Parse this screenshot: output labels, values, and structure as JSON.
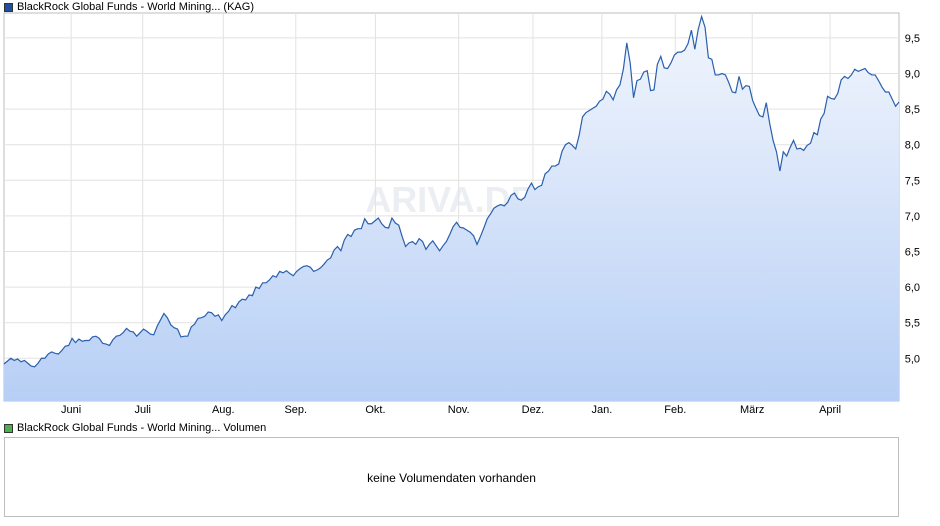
{
  "legend": {
    "price_label": "BlackRock Global Funds - World Mining... (KAG)",
    "price_color": "#1f4fa0",
    "volume_label": "BlackRock Global Funds - World Mining... Volumen",
    "volume_color": "#4caf50"
  },
  "volume": {
    "message": "keine Volumendaten vorhanden"
  },
  "watermark": "ARIVA.DE",
  "chart_data": {
    "type": "area",
    "x_labels": [
      "Juni",
      "Juli",
      "Aug.",
      "Sep.",
      "Okt.",
      "Nov.",
      "Dez.",
      "Jan.",
      "Feb.",
      "März",
      "April"
    ],
    "y_ticks": [
      "5,0",
      "5,5",
      "6,0",
      "6,5",
      "7,0",
      "7,5",
      "8,0",
      "8,5",
      "9,0",
      "9,5"
    ],
    "y_tick_values": [
      5.0,
      5.5,
      6.0,
      6.5,
      7.0,
      7.5,
      8.0,
      8.5,
      9.0,
      9.5
    ],
    "ylim": [
      4.4,
      9.85
    ],
    "line_color": "#2a5fae",
    "fill_top_color": "#f2f6fd",
    "fill_bottom_color": "#b7cff5",
    "grid": true,
    "axis_position": "right",
    "series": [
      {
        "values": [
          4.92,
          4.96,
          5.0,
          4.97,
          4.99,
          4.95,
          4.97,
          4.93,
          4.89,
          4.88,
          4.93,
          5.0,
          5.0,
          5.06,
          5.09,
          5.07,
          5.06,
          5.11,
          5.17,
          5.18,
          5.28,
          5.22,
          5.27,
          5.24,
          5.25,
          5.25,
          5.3,
          5.31,
          5.28,
          5.21,
          5.2,
          5.18,
          5.26,
          5.31,
          5.32,
          5.36,
          5.42,
          5.38,
          5.37,
          5.31,
          5.36,
          5.41,
          5.38,
          5.34,
          5.33,
          5.45,
          5.54,
          5.63,
          5.57,
          5.47,
          5.43,
          5.41,
          5.3,
          5.31,
          5.31,
          5.44,
          5.48,
          5.56,
          5.57,
          5.59,
          5.65,
          5.64,
          5.59,
          5.61,
          5.53,
          5.61,
          5.66,
          5.74,
          5.71,
          5.79,
          5.83,
          5.82,
          5.89,
          5.88,
          6.0,
          5.98,
          6.06,
          6.06,
          6.1,
          6.16,
          6.14,
          6.22,
          6.2,
          6.23,
          6.19,
          6.16,
          6.22,
          6.26,
          6.29,
          6.3,
          6.28,
          6.22,
          6.24,
          6.27,
          6.32,
          6.38,
          6.41,
          6.52,
          6.57,
          6.51,
          6.66,
          6.74,
          6.71,
          6.8,
          6.82,
          6.82,
          6.96,
          6.89,
          6.89,
          6.93,
          6.97,
          6.89,
          6.84,
          6.83,
          6.97,
          6.9,
          6.87,
          6.71,
          6.57,
          6.62,
          6.64,
          6.6,
          6.68,
          6.64,
          6.53,
          6.6,
          6.65,
          6.58,
          6.51,
          6.58,
          6.64,
          6.74,
          6.85,
          6.91,
          6.84,
          6.83,
          6.8,
          6.77,
          6.72,
          6.6,
          6.71,
          6.83,
          6.96,
          7.03,
          7.11,
          7.14,
          7.16,
          7.14,
          7.19,
          7.29,
          7.32,
          7.24,
          7.22,
          7.26,
          7.38,
          7.46,
          7.37,
          7.41,
          7.43,
          7.59,
          7.63,
          7.7,
          7.7,
          7.73,
          7.91,
          8.0,
          8.03,
          7.99,
          7.94,
          8.13,
          8.39,
          8.45,
          8.48,
          8.51,
          8.54,
          8.61,
          8.64,
          8.75,
          8.71,
          8.63,
          8.77,
          8.84,
          9.06,
          9.43,
          9.15,
          8.66,
          8.9,
          8.92,
          9.02,
          9.04,
          8.76,
          8.77,
          9.13,
          9.24,
          9.08,
          9.07,
          9.15,
          9.26,
          9.3,
          9.3,
          9.33,
          9.42,
          9.61,
          9.34,
          9.62,
          9.8,
          9.65,
          9.22,
          9.2,
          8.98,
          8.98,
          9.0,
          8.98,
          8.87,
          8.74,
          8.73,
          8.96,
          8.78,
          8.83,
          8.82,
          8.62,
          8.51,
          8.41,
          8.39,
          8.59,
          8.3,
          8.06,
          7.9,
          7.63,
          7.9,
          7.84,
          7.96,
          8.06,
          7.94,
          7.95,
          7.92,
          7.99,
          8.02,
          8.17,
          8.14,
          8.36,
          8.44,
          8.68,
          8.65,
          8.64,
          8.72,
          8.91,
          8.96,
          8.93,
          8.98,
          9.06,
          9.03,
          9.05,
          9.07,
          9.01,
          8.98,
          8.98,
          8.9,
          8.81,
          8.74,
          8.74,
          8.64,
          8.54,
          8.6
        ]
      }
    ]
  }
}
